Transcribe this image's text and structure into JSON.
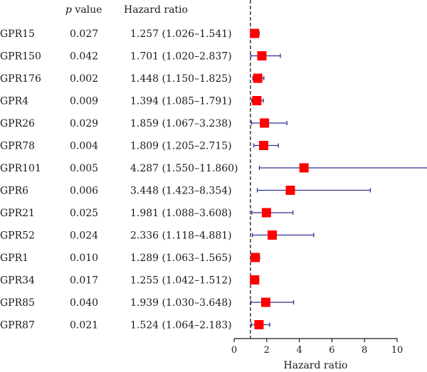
{
  "chart_data": {
    "type": "forest",
    "headers": {
      "p_symbol": "p",
      "p_word": "value",
      "hr": "Hazard ratio"
    },
    "xlabel": "Hazard ratio",
    "xlim": [
      0,
      12
    ],
    "xticks": [
      0,
      2,
      4,
      6,
      8,
      10
    ],
    "reference_line": 1,
    "colors": {
      "point": "#ff0000",
      "ci": "#2e3192",
      "axis": "#1a1a1a"
    },
    "rows": [
      {
        "gene": "GPR15",
        "p": "0.027",
        "hr_text": "1.257 (1.026–1.541)",
        "hr": 1.257,
        "lo": 1.026,
        "hi": 1.541
      },
      {
        "gene": "GPR150",
        "p": "0.042",
        "hr_text": "1.701 (1.020–2.837)",
        "hr": 1.701,
        "lo": 1.02,
        "hi": 2.837
      },
      {
        "gene": "GPR176",
        "p": "0.002",
        "hr_text": "1.448 (1.150–1.825)",
        "hr": 1.448,
        "lo": 1.15,
        "hi": 1.825
      },
      {
        "gene": "GPR4",
        "p": "0.009",
        "hr_text": "1.394 (1.085–1.791)",
        "hr": 1.394,
        "lo": 1.085,
        "hi": 1.791
      },
      {
        "gene": "GPR26",
        "p": "0.029",
        "hr_text": "1.859 (1.067–3.238)",
        "hr": 1.859,
        "lo": 1.067,
        "hi": 3.238
      },
      {
        "gene": "GPR78",
        "p": "0.004",
        "hr_text": "1.809 (1.205–2.715)",
        "hr": 1.809,
        "lo": 1.205,
        "hi": 2.715
      },
      {
        "gene": "GPR101",
        "p": "0.005",
        "hr_text": "4.287 (1.550–11.860)",
        "hr": 4.287,
        "lo": 1.55,
        "hi": 11.86
      },
      {
        "gene": "GPR6",
        "p": "0.006",
        "hr_text": "3.448 (1.423–8.354)",
        "hr": 3.448,
        "lo": 1.423,
        "hi": 8.354
      },
      {
        "gene": "GPR21",
        "p": "0.025",
        "hr_text": "1.981 (1.088–3.608)",
        "hr": 1.981,
        "lo": 1.088,
        "hi": 3.608
      },
      {
        "gene": "GPR52",
        "p": "0.024",
        "hr_text": "2.336 (1.118–4.881)",
        "hr": 2.336,
        "lo": 1.118,
        "hi": 4.881
      },
      {
        "gene": "GPR1",
        "p": "0.010",
        "hr_text": "1.289 (1.063–1.565)",
        "hr": 1.289,
        "lo": 1.063,
        "hi": 1.565
      },
      {
        "gene": "GPR34",
        "p": "0.017",
        "hr_text": "1.255 (1.042–1.512)",
        "hr": 1.255,
        "lo": 1.042,
        "hi": 1.512
      },
      {
        "gene": "GPR85",
        "p": "0.040",
        "hr_text": "1.939 (1.030–3.648)",
        "hr": 1.939,
        "lo": 1.03,
        "hi": 3.648
      },
      {
        "gene": "GPR87",
        "p": "0.021",
        "hr_text": "1.524 (1.064–2.183)",
        "hr": 1.524,
        "lo": 1.064,
        "hi": 2.183
      }
    ]
  }
}
